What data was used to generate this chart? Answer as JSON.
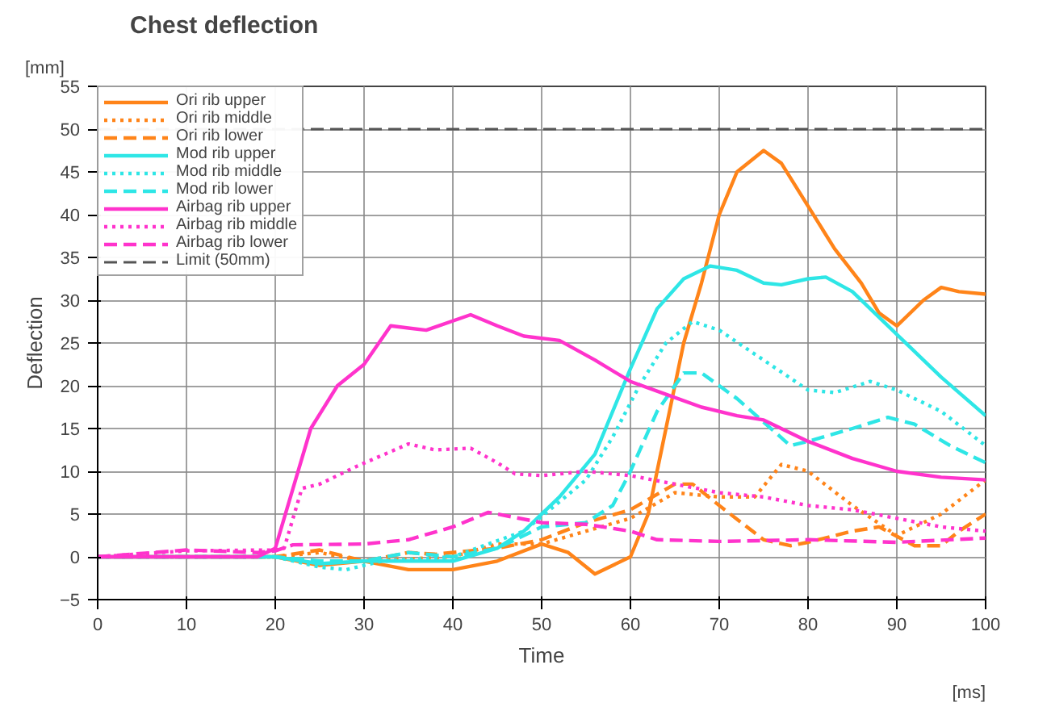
{
  "chart_data": {
    "type": "line",
    "title": "Chest deflection",
    "xlabel": "Time",
    "ylabel": "Deflection",
    "annotations": [
      "[mm]",
      "[ms]"
    ],
    "xlim": [
      0,
      100
    ],
    "ylim": [
      -5,
      55
    ],
    "xticks": [
      0,
      10,
      20,
      30,
      40,
      50,
      60,
      70,
      80,
      90,
      100
    ],
    "yticks": [
      -5,
      0,
      5,
      10,
      15,
      20,
      25,
      30,
      35,
      40,
      45,
      50,
      55
    ],
    "grid": true,
    "legend": "top left",
    "series": [
      {
        "name": "Ori rib upper",
        "color": "#ff8419",
        "line_style": "solid",
        "x": [
          0,
          20,
          25,
          30,
          35,
          40,
          45,
          50,
          53,
          56,
          60,
          62,
          64,
          66,
          68,
          70,
          72,
          75,
          77,
          80,
          83,
          86,
          88,
          90,
          93,
          95,
          97,
          100
        ],
        "values": [
          0,
          0,
          -1,
          -0.5,
          -1.5,
          -1.5,
          -0.5,
          1.5,
          0.5,
          -2,
          0,
          5,
          15,
          25,
          32,
          40,
          45,
          47.5,
          46,
          41,
          36,
          32,
          28.5,
          27,
          30,
          31.5,
          31,
          30.7
        ]
      },
      {
        "name": "Ori rib middle",
        "color": "#ff8419",
        "line_style": "dotted",
        "x": [
          0,
          20,
          25,
          30,
          40,
          45,
          50,
          55,
          60,
          65,
          70,
          74,
          77,
          80,
          85,
          90,
          95,
          100
        ],
        "values": [
          0,
          0,
          0.5,
          -0.5,
          0,
          1.5,
          1.5,
          3,
          4.5,
          7.5,
          7,
          7,
          10.8,
          10,
          6,
          2.5,
          5,
          9
        ]
      },
      {
        "name": "Ori rib lower",
        "color": "#ff8419",
        "line_style": "dashed",
        "x": [
          0,
          20,
          25,
          30,
          35,
          38,
          45,
          50,
          55,
          60,
          65,
          67,
          70,
          75,
          78,
          80,
          85,
          88,
          92,
          95,
          97,
          100
        ],
        "values": [
          0,
          0,
          0.8,
          -0.5,
          0.5,
          0.3,
          1,
          2,
          4,
          5.5,
          8.5,
          8.5,
          6,
          2,
          1.3,
          1.7,
          3,
          3.5,
          1.3,
          1.3,
          3,
          5
        ]
      },
      {
        "name": "Mod rib upper",
        "color": "#2ee6e6",
        "line_style": "solid",
        "x": [
          0,
          20,
          25,
          30,
          40,
          45,
          48,
          52,
          56,
          60,
          63,
          66,
          69,
          72,
          75,
          77,
          80,
          82,
          85,
          88,
          90,
          95,
          100
        ],
        "values": [
          0,
          0,
          -0.8,
          -0.5,
          -0.5,
          1,
          3,
          7,
          12,
          22,
          29,
          32.5,
          34,
          33.5,
          32,
          31.8,
          32.5,
          32.7,
          31,
          28,
          26,
          21,
          16.5
        ]
      },
      {
        "name": "Mod rib middle",
        "color": "#2ee6e6",
        "line_style": "dotted",
        "x": [
          0,
          20,
          25,
          28,
          32,
          40,
          48,
          55,
          58,
          61,
          64,
          67,
          70,
          75,
          80,
          83,
          87,
          90,
          95,
          100
        ],
        "values": [
          0,
          0,
          -1.2,
          -1.5,
          -0.5,
          0,
          3,
          9,
          14,
          20,
          25,
          27.5,
          26.5,
          23,
          19.5,
          19.2,
          20.5,
          19.5,
          17,
          13
        ]
      },
      {
        "name": "Mod rib lower",
        "color": "#2ee6e6",
        "line_style": "dashed",
        "x": [
          0,
          20,
          25,
          30,
          35,
          40,
          45,
          50,
          55,
          58,
          60,
          63,
          66,
          68,
          72,
          78,
          80,
          85,
          89,
          92,
          96,
          100
        ],
        "values": [
          0,
          0,
          -0.5,
          -0.5,
          0.5,
          0,
          1,
          3.5,
          4,
          6,
          10,
          17,
          21.5,
          21.5,
          18.5,
          13,
          13.5,
          15,
          16.3,
          15.5,
          13,
          11
        ]
      },
      {
        "name": "Airbag rib upper",
        "color": "#ff33cc",
        "line_style": "solid",
        "x": [
          0,
          18,
          20,
          22,
          24,
          27,
          30,
          33,
          37,
          42,
          45,
          48,
          52,
          56,
          60,
          64,
          68,
          72,
          75,
          80,
          85,
          90,
          95,
          100
        ],
        "values": [
          0,
          0,
          1,
          8,
          15,
          20,
          22.5,
          27,
          26.5,
          28.3,
          27,
          25.8,
          25.3,
          23,
          20.5,
          19,
          17.5,
          16.5,
          16,
          13.5,
          11.5,
          10,
          9.3,
          9
        ]
      },
      {
        "name": "Airbag rib middle",
        "color": "#ff33cc",
        "line_style": "dotted",
        "x": [
          0,
          10,
          20,
          21,
          23,
          25,
          29,
          35,
          38,
          42,
          45,
          47,
          50,
          55,
          60,
          65,
          70,
          75,
          80,
          85,
          90,
          95,
          100
        ],
        "values": [
          0,
          0.7,
          0.8,
          1,
          8,
          8.5,
          10.5,
          13.2,
          12.5,
          12.7,
          11,
          9.7,
          9.5,
          10,
          9.5,
          8.5,
          7.5,
          7,
          6,
          5.5,
          4.5,
          3.5,
          3
        ]
      },
      {
        "name": "Airbag rib lower",
        "color": "#ff33cc",
        "line_style": "dashed",
        "x": [
          0,
          10,
          18,
          20,
          22,
          30,
          35,
          40,
          44,
          50,
          55,
          60,
          63,
          70,
          80,
          90,
          100
        ],
        "values": [
          0,
          0.8,
          0.5,
          0.7,
          1.4,
          1.5,
          2,
          3.5,
          5.2,
          4,
          3.8,
          3,
          2,
          1.8,
          2,
          1.7,
          2.2
        ]
      }
    ],
    "ref_lines": [
      {
        "axis": "y",
        "value": 50,
        "label": "Limit (50mm)",
        "color": "#555555",
        "line_style": "dashed"
      }
    ]
  }
}
